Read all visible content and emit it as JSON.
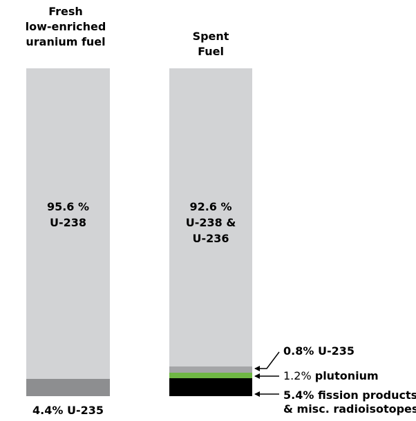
{
  "bar1": {
    "title_lines": [
      "Fresh",
      "low-enriched",
      "uranium fuel"
    ],
    "main_label_lines": [
      "95.6 %",
      "U-238"
    ],
    "bottom_label": "4.4% U-235"
  },
  "bar2": {
    "title_lines": [
      "Spent",
      "Fuel"
    ],
    "main_label_lines": [
      "92.6 %",
      "U-238 &",
      "U-236"
    ],
    "callouts": {
      "u235": "0.8% U-235",
      "plutonium_prefix": "1.2% ",
      "plutonium_word": "plutonium",
      "fission_line1": "5.4% fission products",
      "fission_line2": "& misc. radioisotopes"
    }
  },
  "chart_data": {
    "type": "bar",
    "categories": [
      "Fresh low-enriched uranium fuel",
      "Spent Fuel"
    ],
    "unit": "%",
    "series": [
      {
        "name": "U-238",
        "values": [
          95.6,
          null
        ]
      },
      {
        "name": "U-238 & U-236",
        "values": [
          null,
          92.6
        ]
      },
      {
        "name": "U-235",
        "values": [
          4.4,
          0.8
        ]
      },
      {
        "name": "plutonium",
        "values": [
          null,
          1.2
        ]
      },
      {
        "name": "fission products & misc. radioisotopes",
        "values": [
          null,
          5.4
        ]
      }
    ]
  },
  "colors": {
    "uranium_main": "#d2d3d5",
    "u235": "#8d8e90",
    "u235_spent": "#a4a5a7",
    "plutonium": "#6fb744",
    "fission": "#000000"
  }
}
